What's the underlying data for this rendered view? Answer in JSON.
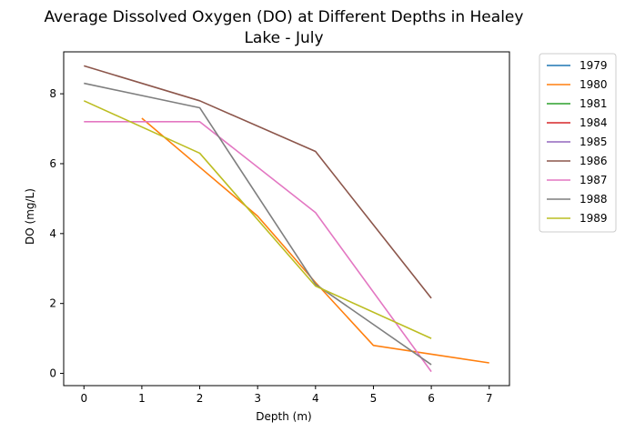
{
  "chart_data": {
    "type": "line",
    "title_lines": [
      "Average Dissolved Oxygen (DO) at Different Depths in Healey",
      "Lake - July"
    ],
    "xlabel": "Depth (m)",
    "ylabel": "DO (mg/L)",
    "xlim": [
      -0.35,
      7.35
    ],
    "ylim": [
      -0.35,
      9.2
    ],
    "xticks": [
      0,
      1,
      2,
      3,
      4,
      5,
      6,
      7
    ],
    "yticks": [
      0,
      2,
      4,
      6,
      8
    ],
    "grid": false,
    "legend_position": "outside-right-top",
    "series": [
      {
        "name": "1979",
        "color": "#1f77b4",
        "x": [],
        "y": []
      },
      {
        "name": "1980",
        "color": "#ff7f0e",
        "x": [
          1,
          2,
          3,
          4,
          5,
          6,
          7
        ],
        "y": [
          7.3,
          5.9,
          4.5,
          2.6,
          0.8,
          0.55,
          0.3
        ]
      },
      {
        "name": "1981",
        "color": "#2ca02c",
        "x": [],
        "y": []
      },
      {
        "name": "1984",
        "color": "#d62728",
        "x": [],
        "y": []
      },
      {
        "name": "1985",
        "color": "#9467bd",
        "x": [],
        "y": []
      },
      {
        "name": "1986",
        "color": "#8c564b",
        "x": [
          0,
          2,
          4,
          6
        ],
        "y": [
          8.8,
          7.8,
          6.35,
          2.15
        ]
      },
      {
        "name": "1987",
        "color": "#e377c2",
        "x": [
          0,
          2,
          4,
          6
        ],
        "y": [
          7.2,
          7.2,
          4.6,
          0.05
        ]
      },
      {
        "name": "1988",
        "color": "#7f7f7f",
        "x": [
          0,
          2,
          4,
          6
        ],
        "y": [
          8.3,
          7.6,
          2.55,
          0.25
        ]
      },
      {
        "name": "1989",
        "color": "#bcbd22",
        "x": [
          0,
          2,
          4,
          6
        ],
        "y": [
          7.8,
          6.3,
          2.5,
          1.0
        ]
      }
    ]
  }
}
